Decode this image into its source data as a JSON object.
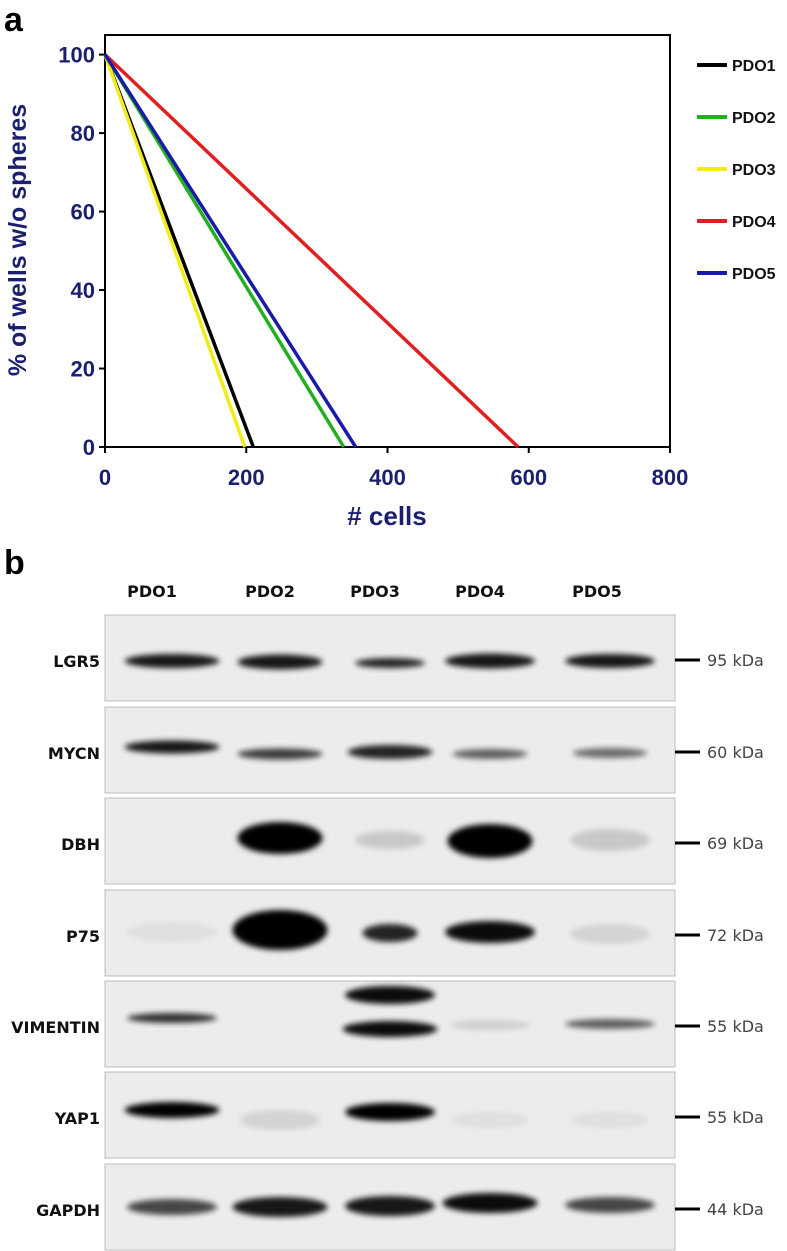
{
  "panel_a": {
    "label": "a"
  },
  "chart_data": {
    "type": "line",
    "xlabel": "# cells",
    "ylabel": "% of wells w/o spheres",
    "xlim": [
      0,
      800
    ],
    "ylim": [
      0,
      105
    ],
    "xticks": [
      0,
      200,
      400,
      600,
      800
    ],
    "yticks": [
      0,
      20,
      40,
      60,
      80,
      100
    ],
    "legend": "right",
    "series": [
      {
        "name": "PDO1",
        "color": "#000000",
        "x": [
          0,
          210
        ],
        "values": [
          100,
          0
        ]
      },
      {
        "name": "PDO2",
        "color": "#22b022",
        "x": [
          0,
          338
        ],
        "values": [
          100,
          0
        ]
      },
      {
        "name": "PDO3",
        "color": "#f2ea1a",
        "x": [
          0,
          198
        ],
        "values": [
          100,
          0
        ]
      },
      {
        "name": "PDO4",
        "color": "#e02020",
        "x": [
          0,
          585
        ],
        "values": [
          100,
          0
        ]
      },
      {
        "name": "PDO5",
        "color": "#1a1aa8",
        "x": [
          0,
          355
        ],
        "values": [
          100,
          0
        ]
      }
    ]
  },
  "blot": {
    "label": "b",
    "lanes": [
      "PDO1",
      "PDO2",
      "PDO3",
      "PDO4",
      "PDO5"
    ],
    "rows": [
      {
        "protein": "LGR5",
        "size": "95 kDa"
      },
      {
        "protein": "MYCN",
        "size": "60 kDa"
      },
      {
        "protein": "DBH",
        "size": "69 kDa"
      },
      {
        "protein": "P75",
        "size": "72 kDa"
      },
      {
        "protein": "VIMENTIN",
        "size": "55 kDa"
      },
      {
        "protein": "YAP1",
        "size": "55 kDa"
      },
      {
        "protein": "GAPDH",
        "size": "44 kDa"
      }
    ]
  }
}
